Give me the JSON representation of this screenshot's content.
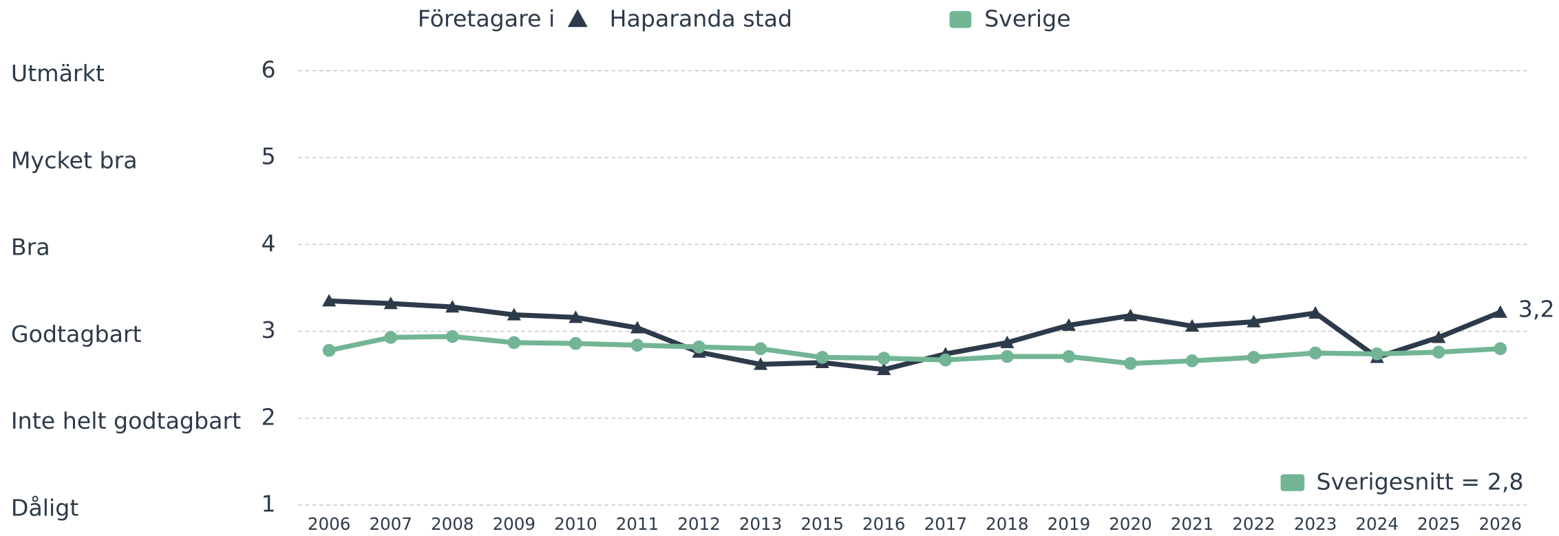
{
  "chart_data": {
    "type": "line",
    "legend_title": "Företagare i",
    "categories": [
      "2006",
      "2007",
      "2008",
      "2009",
      "2010",
      "2011",
      "2012",
      "2013",
      "2015",
      "2016",
      "2017",
      "2018",
      "2019",
      "2020",
      "2021",
      "2022",
      "2023",
      "2024",
      "2025",
      "2026"
    ],
    "series": [
      {
        "name": "Haparanda stad",
        "color": "#2d3a4a",
        "marker": "triangle",
        "values": [
          3.35,
          3.32,
          3.28,
          3.19,
          3.16,
          3.04,
          2.76,
          2.62,
          2.64,
          2.56,
          2.74,
          2.87,
          3.07,
          3.18,
          3.06,
          3.11,
          3.21,
          2.7,
          2.93,
          3.22
        ],
        "value_labels": [
          null,
          null,
          null,
          null,
          null,
          null,
          null,
          null,
          null,
          null,
          null,
          null,
          null,
          null,
          null,
          null,
          null,
          null,
          null,
          "3,2"
        ]
      },
      {
        "name": "Sverige",
        "color": "#72b595",
        "marker": "circle",
        "values": [
          2.78,
          2.93,
          2.94,
          2.87,
          2.86,
          2.84,
          2.82,
          2.8,
          2.7,
          2.69,
          2.67,
          2.71,
          2.71,
          2.63,
          2.66,
          2.7,
          2.75,
          2.74,
          2.76,
          2.8
        ]
      }
    ],
    "ylim": [
      1,
      6
    ],
    "yticks": [
      1,
      2,
      3,
      4,
      5,
      6
    ],
    "ytick_names": [
      "Dåligt",
      "Inte helt godtagbart",
      "Godtagbart",
      "Bra",
      "Mycket bra",
      "Utmärkt"
    ],
    "annotation": "Sverigesnitt = 2,8",
    "annotation_color": "#72b595",
    "grid": true
  }
}
